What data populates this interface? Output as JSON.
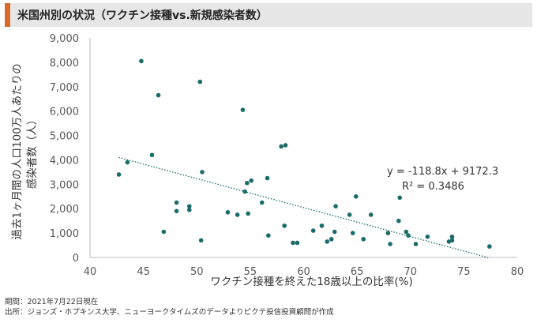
{
  "title": "米国州別の状況（ワクチン接種vs.新規感染者数）",
  "colors": {
    "accent": "#d9692a",
    "point": "#1a6b6b",
    "trendline": "#1a6b6b",
    "axis": "#b8b8b8",
    "text": "#595959"
  },
  "chart_data": {
    "type": "scatter",
    "xlabel": "ワクチン接種を終えた18歳以上の比率(%)",
    "ylabel_lines": [
      "過去1ヶ月間の人口100万人あたりの",
      "感染者数（人）"
    ],
    "xlim": [
      40,
      80
    ],
    "ylim": [
      0,
      9000
    ],
    "xticks": [
      "40",
      "45",
      "50",
      "55",
      "60",
      "65",
      "70",
      "75",
      "80"
    ],
    "yticks": [
      "0",
      "1,000",
      "2,000",
      "3,000",
      "4,000",
      "5,000",
      "6,000",
      "7,000",
      "8,000",
      "9,000"
    ],
    "grid": false,
    "series": [
      {
        "points": [
          [
            42.7,
            3400
          ],
          [
            43.5,
            3900
          ],
          [
            44.8,
            8050
          ],
          [
            45.8,
            4200
          ],
          [
            46.4,
            6650
          ],
          [
            46.9,
            1050
          ],
          [
            48.1,
            2250
          ],
          [
            48.1,
            1900
          ],
          [
            49.3,
            2100
          ],
          [
            49.3,
            1950
          ],
          [
            50.3,
            7200
          ],
          [
            50.5,
            3500
          ],
          [
            50.4,
            700
          ],
          [
            52.9,
            1850
          ],
          [
            53.8,
            1750
          ],
          [
            54.3,
            6050
          ],
          [
            54.5,
            2700
          ],
          [
            54.7,
            3050
          ],
          [
            55.1,
            3150
          ],
          [
            54.8,
            1800
          ],
          [
            56.7,
            900
          ],
          [
            57.9,
            4550
          ],
          [
            58.3,
            4600
          ],
          [
            58.2,
            1300
          ],
          [
            56.6,
            3250
          ],
          [
            56.1,
            2250
          ],
          [
            59.0,
            600
          ],
          [
            59.4,
            600
          ],
          [
            60.9,
            1100
          ],
          [
            61.7,
            1300
          ],
          [
            62.2,
            650
          ],
          [
            62.6,
            750
          ],
          [
            62.9,
            1050
          ],
          [
            63.0,
            2100
          ],
          [
            64.3,
            1750
          ],
          [
            64.6,
            1000
          ],
          [
            64.9,
            2500
          ],
          [
            65.6,
            750
          ],
          [
            66.3,
            1750
          ],
          [
            67.9,
            1000
          ],
          [
            68.1,
            550
          ],
          [
            69.8,
            900
          ],
          [
            68.9,
            1500
          ],
          [
            69.0,
            2450
          ],
          [
            69.6,
            1050
          ],
          [
            70.5,
            550
          ],
          [
            71.6,
            850
          ],
          [
            73.6,
            650
          ],
          [
            73.9,
            700
          ],
          [
            73.9,
            850
          ],
          [
            77.4,
            450
          ]
        ]
      }
    ],
    "trendline": {
      "slope": -118.8,
      "intercept": 9172.3,
      "x_range": [
        42.7,
        77.4
      ],
      "equation": "y = -118.8x + 9172.3",
      "r_squared": "R² = 0.3486"
    }
  },
  "notes": {
    "period": "期間：2021年7月22日現在",
    "source": "出所：ジョンズ・ホプキンス大学、ニューヨークタイムズのデータよりピクテ投信投資顧問が作成"
  }
}
